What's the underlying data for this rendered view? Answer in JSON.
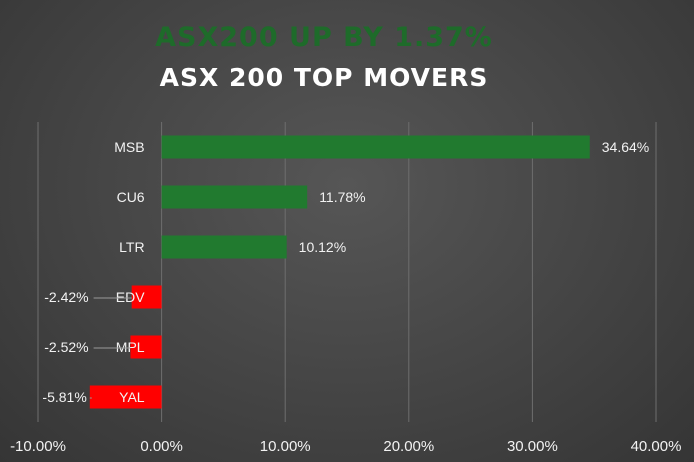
{
  "chart_data": {
    "type": "bar",
    "orientation": "horizontal",
    "subtitle": "ASX200 UP BY 1.37%",
    "title": "ASX 200 TOP MOVERS",
    "categories": [
      "MSB",
      "CU6",
      "LTR",
      "EDV",
      "MPL",
      "YAL"
    ],
    "values": [
      34.64,
      11.78,
      10.12,
      -2.42,
      -2.52,
      -5.81
    ],
    "value_labels": [
      "34.64%",
      "11.78%",
      "10.12%",
      "-2.42%",
      "-2.52%",
      "-5.81%"
    ],
    "xlim": [
      -10,
      40
    ],
    "xticks": [
      -10,
      0,
      10,
      20,
      30,
      40
    ],
    "xtick_labels": [
      "-10.00%",
      "0.00%",
      "10.00%",
      "20.00%",
      "30.00%",
      "40.00%"
    ],
    "grid": true,
    "legend": "none",
    "colors": {
      "positive": "#217a2f",
      "negative": "#ff0000",
      "subtitle": "#1e6b2a",
      "title": "#ffffff",
      "grid": "#6e6e6e",
      "text": "#f2f2f2"
    }
  }
}
